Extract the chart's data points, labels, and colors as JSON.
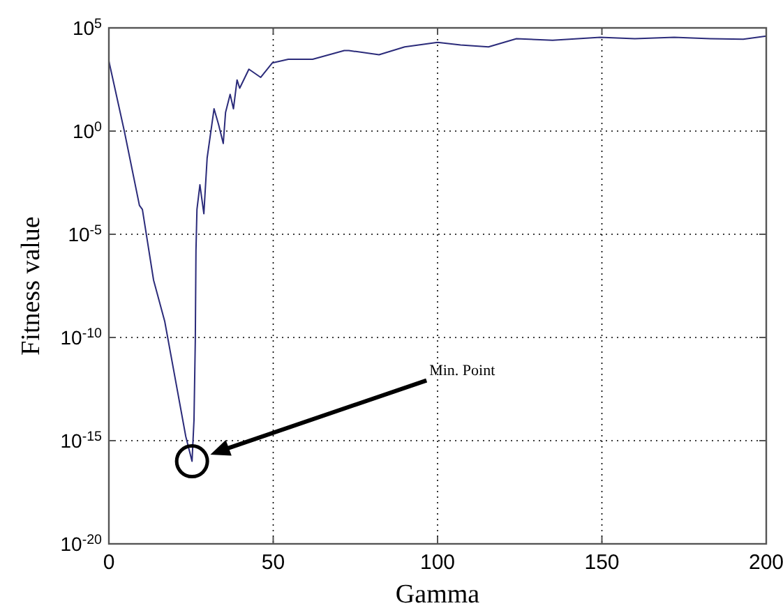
{
  "chart_data": {
    "type": "line",
    "xlabel": "Gamma",
    "ylabel": "Fitness value",
    "log": "y",
    "grid": true,
    "line_style": "solid",
    "marker": "none",
    "xlim": [
      0,
      200
    ],
    "xticks": [
      0,
      50,
      100,
      150,
      200
    ],
    "ylim": [
      1e-20,
      100000.0
    ],
    "yticks": [
      {
        "value": 1e-20,
        "label": "10$^{-20}$"
      },
      {
        "value": 1e-15,
        "label": "10$^{-15}$"
      },
      {
        "value": 1e-10,
        "label": "10$^{-10}$"
      },
      {
        "value": 1e-05,
        "label": "10$^{-5}$"
      },
      {
        "value": 1,
        "label": "10$^{0}$"
      },
      {
        "value": 100000.0,
        "label": "10$^{5}$"
      }
    ],
    "annotations": [
      "Min. Point"
    ],
    "series": [
      {
        "color": "#2b2b7a",
        "x": [
          0,
          4.7,
          9.3,
          10.2,
          13.6,
          17,
          23.4,
          25.3,
          25.9,
          26.3,
          26.5,
          26.8,
          27.7,
          28.9,
          29.9,
          32,
          33.4,
          34.8,
          35.5,
          36.9,
          37.9,
          39,
          39.8,
          42.6,
          46.2,
          49.7,
          54.6,
          62,
          71.6,
          73,
          82.2,
          90,
          100,
          107,
          115.5,
          124,
          135,
          149.5,
          160,
          172,
          183,
          193,
          200
        ],
        "values": [
          2500,
          1,
          0.00025,
          0.00016,
          6e-08,
          6e-10,
          1.6e-15,
          1e-16,
          1e-14,
          8e-11,
          1.6e-06,
          0.00016,
          0.0025,
          0.0001,
          0.05,
          12,
          2,
          0.25,
          8,
          60,
          12,
          300,
          120,
          1000,
          400,
          2000,
          3000,
          3000,
          8000,
          8000,
          5000,
          12000,
          20000,
          15000,
          12000,
          30000,
          25000,
          35000,
          30000,
          35000,
          30000,
          28000,
          40000
        ]
      }
    ]
  }
}
